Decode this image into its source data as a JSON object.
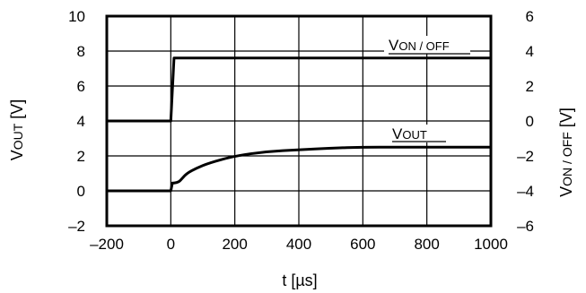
{
  "chart_data": {
    "type": "line",
    "x": {
      "label": "t [µs]",
      "lim": [
        -200,
        1000
      ],
      "ticks": [
        "–200",
        "0",
        "200",
        "400",
        "600",
        "800",
        "1000"
      ],
      "tick_values": [
        -200,
        0,
        200,
        400,
        600,
        800,
        1000
      ]
    },
    "y_left": {
      "label_main": "V",
      "label_sub": "OUT",
      "label_unit": " [V]",
      "lim": [
        -2,
        10
      ],
      "ticks": [
        "–2",
        "0",
        "2",
        "4",
        "6",
        "8",
        "10"
      ],
      "tick_values": [
        -2,
        0,
        2,
        4,
        6,
        8,
        10
      ]
    },
    "y_right": {
      "label_main": "V",
      "label_sub": "ON / OFF",
      "label_unit": " [V]",
      "lim": [
        -6,
        6
      ],
      "ticks": [
        "–6",
        "–4",
        "–2",
        "0",
        "2",
        "4",
        "6"
      ],
      "tick_values": [
        -6,
        -4,
        -2,
        0,
        2,
        4,
        6
      ]
    },
    "grid": true,
    "series": [
      {
        "name": "VON / OFF",
        "label_main": "V",
        "label_sub": "ON / OFF",
        "axis": "right",
        "x": [
          -200,
          0,
          10,
          1000
        ],
        "y": [
          0,
          0,
          3.6,
          3.6
        ]
      },
      {
        "name": "VOUT",
        "label_main": "V",
        "label_sub": "OUT",
        "axis": "left",
        "x": [
          -200,
          0,
          5,
          10,
          25,
          35,
          50,
          80,
          120,
          200,
          300,
          400,
          500,
          600,
          700,
          800,
          1000
        ],
        "y": [
          0,
          0,
          0.45,
          0.45,
          0.5,
          0.7,
          1.0,
          1.3,
          1.6,
          2.0,
          2.25,
          2.35,
          2.45,
          2.5,
          2.5,
          2.5,
          2.5
        ]
      }
    ]
  }
}
